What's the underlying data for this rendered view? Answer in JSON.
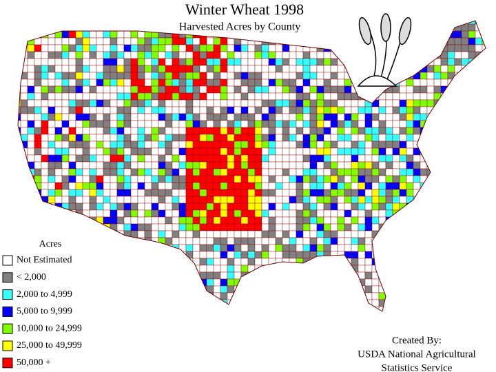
{
  "header": {
    "title": "Winter Wheat 1998",
    "subtitle": "Harvested Acres by County"
  },
  "legend": {
    "title": "Acres",
    "items": [
      {
        "label": "Not Estimated",
        "color": "#ffffff"
      },
      {
        "label": "< 2,000",
        "color": "#808080"
      },
      {
        "label": "2,000 to 4,999",
        "color": "#33ffff"
      },
      {
        "label": "5,000 to 9,999",
        "color": "#0000ff"
      },
      {
        "label": "10,000 to 24,999",
        "color": "#80ff00"
      },
      {
        "label": "25,000 to 49,999",
        "color": "#ffff00"
      },
      {
        "label": "50,000 +",
        "color": "#ff0000"
      }
    ]
  },
  "credit": {
    "lines": [
      "Created By:",
      "USDA National Agricultural",
      "Statistics Service"
    ]
  }
}
